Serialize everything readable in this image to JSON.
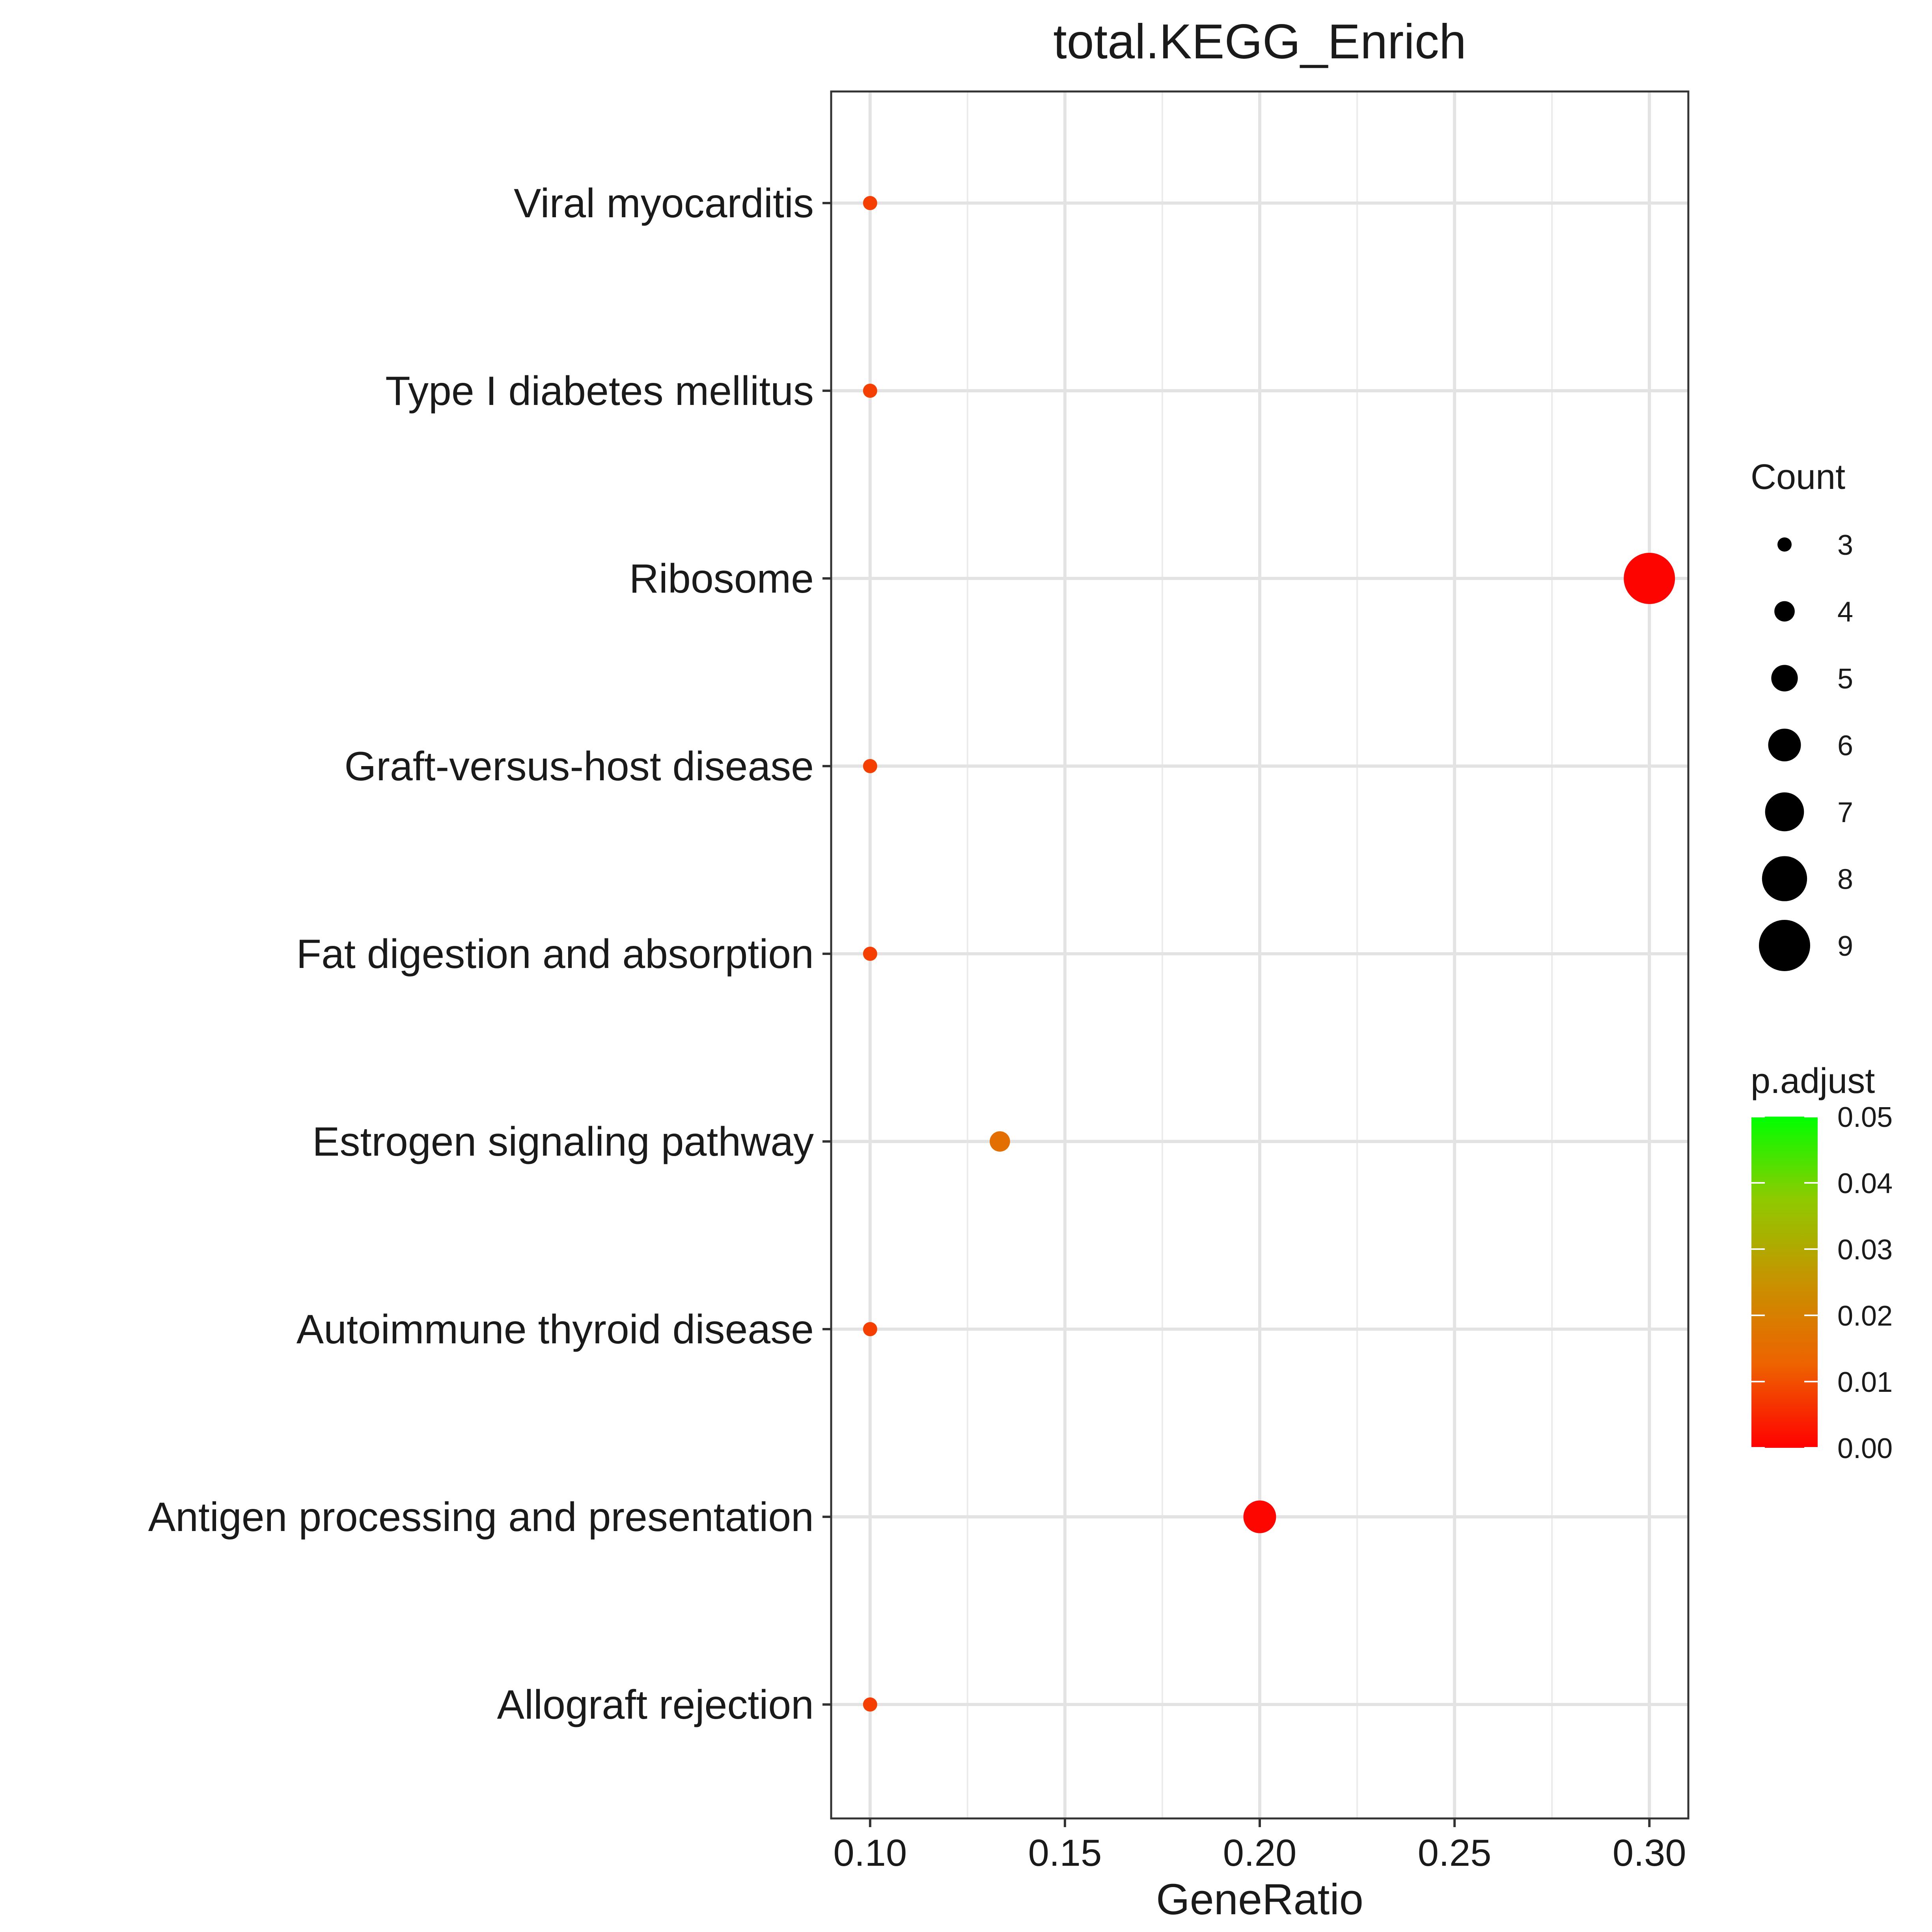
{
  "chart_data": {
    "type": "scatter",
    "title": "total.KEGG_Enrich",
    "xlabel": "GeneRatio",
    "ylabel": "",
    "xlim": [
      0.09,
      0.31
    ],
    "x_ticks": [
      "0.10",
      "0.15",
      "0.20",
      "0.25",
      "0.30"
    ],
    "x_tick_values": [
      0.1,
      0.15,
      0.2,
      0.25,
      0.3
    ],
    "grid": true,
    "categories": [
      "Viral myocarditis",
      "Type I diabetes mellitus",
      "Ribosome",
      "Graft-versus-host disease",
      "Fat digestion and absorption",
      "Estrogen signaling pathway",
      "Autoimmune thyroid disease",
      "Antigen processing and presentation",
      "Allograft rejection"
    ],
    "points": [
      {
        "term": "Viral myocarditis",
        "gene_ratio": 0.1,
        "count": 3,
        "p_adjust": 0.008
      },
      {
        "term": "Type I diabetes mellitus",
        "gene_ratio": 0.1,
        "count": 3,
        "p_adjust": 0.008
      },
      {
        "term": "Ribosome",
        "gene_ratio": 0.3,
        "count": 9,
        "p_adjust": 0.0005
      },
      {
        "term": "Graft-versus-host disease",
        "gene_ratio": 0.1,
        "count": 3,
        "p_adjust": 0.008
      },
      {
        "term": "Fat digestion and absorption",
        "gene_ratio": 0.1,
        "count": 3,
        "p_adjust": 0.008
      },
      {
        "term": "Estrogen signaling pathway",
        "gene_ratio": 0.1333,
        "count": 4,
        "p_adjust": 0.016
      },
      {
        "term": "Autoimmune thyroid disease",
        "gene_ratio": 0.1,
        "count": 3,
        "p_adjust": 0.008
      },
      {
        "term": "Antigen processing and presentation",
        "gene_ratio": 0.2,
        "count": 6,
        "p_adjust": 0.0008
      },
      {
        "term": "Allograft rejection",
        "gene_ratio": 0.1,
        "count": 3,
        "p_adjust": 0.008
      }
    ],
    "legend_size": {
      "title": "Count",
      "values": [
        3,
        4,
        5,
        6,
        7,
        8,
        9
      ],
      "labels": [
        "3",
        "4",
        "5",
        "6",
        "7",
        "8",
        "9"
      ]
    },
    "legend_color": {
      "title": "p.adjust",
      "range": [
        0.0,
        0.05
      ],
      "labels": [
        "0.05",
        "0.04",
        "0.03",
        "0.02",
        "0.01",
        "0.00"
      ],
      "values": [
        0.05,
        0.04,
        0.03,
        0.02,
        0.01,
        0.0
      ],
      "low_color": "#ff0000",
      "high_color": "#00ff00"
    },
    "legend_placement": "right"
  }
}
